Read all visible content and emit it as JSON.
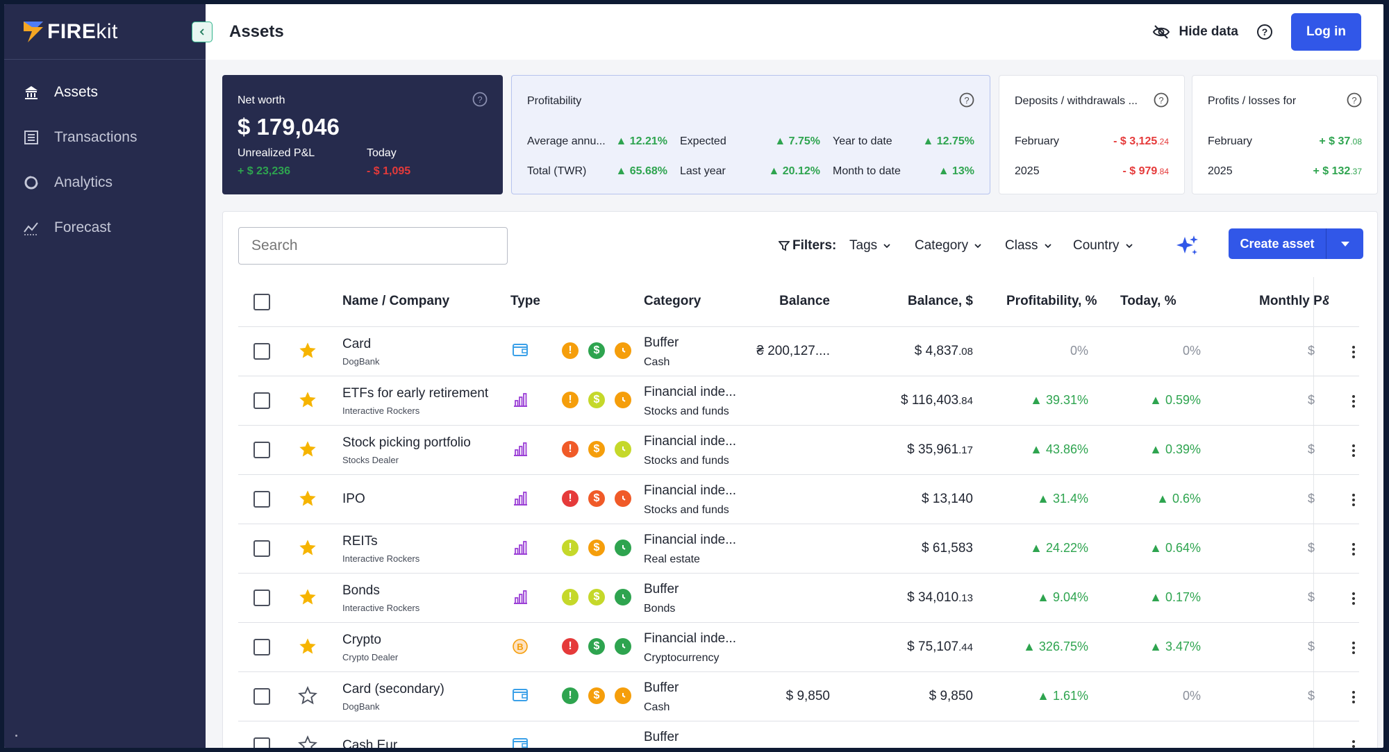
{
  "brand": {
    "name_bold": "FIRE",
    "name_light": "kit"
  },
  "sidebar": {
    "items": [
      {
        "label": "Assets",
        "icon": "bank-icon",
        "active": true
      },
      {
        "label": "Transactions",
        "icon": "list-icon",
        "active": false
      },
      {
        "label": "Analytics",
        "icon": "donut-chart-icon",
        "active": false
      },
      {
        "label": "Forecast",
        "icon": "trend-icon",
        "active": false
      }
    ]
  },
  "topbar": {
    "title": "Assets",
    "hide_data": "Hide data",
    "login": "Log in"
  },
  "networth": {
    "title": "Net worth",
    "value": "$ 179,046",
    "unrealized_label": "Unrealized P&L",
    "unrealized_value": "+ $ 23,236",
    "today_label": "Today",
    "today_value": "- $ 1,095"
  },
  "profitability": {
    "title": "Profitability",
    "avg_label": "Average annu...",
    "avg_value": "▲ 12.21%",
    "expected_label": "Expected",
    "expected_value": "▲ 7.75%",
    "ytd_label": "Year to date",
    "ytd_value": "▲ 12.75%",
    "twr_label": "Total (TWR)",
    "twr_value": "▲ 65.68%",
    "lastyear_label": "Last year",
    "lastyear_value": "▲ 20.12%",
    "mtd_label": "Month to date",
    "mtd_value": "▲ 13%"
  },
  "deposits": {
    "title": "Deposits / withdrawals ...",
    "r1_label": "February",
    "r1_main": "- $ 3,125",
    "r1_cents": ".24",
    "r2_label": "2025",
    "r2_main": "- $ 979",
    "r2_cents": ".84"
  },
  "profits": {
    "title": "Profits / losses for",
    "r1_label": "February",
    "r1_main": "+ $ 37",
    "r1_cents": ".08",
    "r2_label": "2025",
    "r2_main": "+ $ 132",
    "r2_cents": ".37"
  },
  "toolbar": {
    "search_placeholder": "Search",
    "filters_label": "Filters:",
    "filters": [
      "Tags",
      "Category",
      "Class",
      "Country"
    ],
    "create": "Create asset"
  },
  "table": {
    "headers": {
      "name": "Name / Company",
      "type": "Type",
      "category": "Category",
      "balance": "Balance",
      "balance_usd": "Balance, $",
      "profitability": "Profitability, %",
      "today": "Today, %",
      "monthly": "Monthly P&"
    },
    "rows": [
      {
        "name": "Card",
        "company": "DogBank",
        "starred": true,
        "type": "wallet-icon",
        "flags": [
          "#f59e0b",
          "#2ea44f",
          "#f59e0b"
        ],
        "flag_glyphs": [
          "!",
          "$",
          "clock"
        ],
        "category": "Buffer",
        "subcategory": "Cash",
        "balance": "₴ 200,127....",
        "balance_usd": "$ 4,837",
        "balance_usd_cents": ".08",
        "profitability": "0%",
        "today": "0%",
        "monthly": "$"
      },
      {
        "name": "ETFs for early retirement",
        "company": "Interactive Rockers",
        "starred": true,
        "type": "bar-chart-icon",
        "flags": [
          "#f59e0b",
          "#c5d82a",
          "#f59e0b"
        ],
        "flag_glyphs": [
          "!",
          "$",
          "clock"
        ],
        "category": "Financial inde...",
        "subcategory": "Stocks and funds",
        "balance": "",
        "balance_usd": "$ 116,403",
        "balance_usd_cents": ".84",
        "profitability": "▲ 39.31%",
        "today": "▲ 0.59%",
        "monthly": "$"
      },
      {
        "name": "Stock picking portfolio",
        "company": "Stocks Dealer",
        "starred": true,
        "type": "bar-chart-icon",
        "flags": [
          "#f05a28",
          "#f59e0b",
          "#c5d82a"
        ],
        "flag_glyphs": [
          "!",
          "$",
          "clock"
        ],
        "category": "Financial inde...",
        "subcategory": "Stocks and funds",
        "balance": "",
        "balance_usd": "$ 35,961",
        "balance_usd_cents": ".17",
        "profitability": "▲ 43.86%",
        "today": "▲ 0.39%",
        "monthly": "$"
      },
      {
        "name": "IPO",
        "company": "",
        "starred": true,
        "type": "bar-chart-icon",
        "flags": [
          "#e53a3a",
          "#f05a28",
          "#f05a28"
        ],
        "flag_glyphs": [
          "!",
          "$",
          "clock"
        ],
        "category": "Financial inde...",
        "subcategory": "Stocks and funds",
        "balance": "",
        "balance_usd": "$ 13,140",
        "balance_usd_cents": "",
        "profitability": "▲ 31.4%",
        "today": "▲ 0.6%",
        "monthly": "$"
      },
      {
        "name": "REITs",
        "company": "Interactive Rockers",
        "starred": true,
        "type": "bar-chart-icon",
        "flags": [
          "#c5d82a",
          "#f59e0b",
          "#2ea44f"
        ],
        "flag_glyphs": [
          "!",
          "$",
          "clock"
        ],
        "category": "Financial inde...",
        "subcategory": "Real estate",
        "balance": "",
        "balance_usd": "$ 61,583",
        "balance_usd_cents": "",
        "profitability": "▲ 24.22%",
        "today": "▲ 0.64%",
        "monthly": "$"
      },
      {
        "name": "Bonds",
        "company": "Interactive Rockers",
        "starred": true,
        "type": "bar-chart-icon",
        "flags": [
          "#c5d82a",
          "#c5d82a",
          "#2ea44f"
        ],
        "flag_glyphs": [
          "!",
          "$",
          "clock"
        ],
        "category": "Buffer",
        "subcategory": "Bonds",
        "balance": "",
        "balance_usd": "$ 34,010",
        "balance_usd_cents": ".13",
        "profitability": "▲ 9.04%",
        "today": "▲ 0.17%",
        "monthly": "$"
      },
      {
        "name": "Crypto",
        "company": "Crypto Dealer",
        "starred": true,
        "type": "bitcoin-icon",
        "flags": [
          "#e53a3a",
          "#2ea44f",
          "#2ea44f"
        ],
        "flag_glyphs": [
          "!",
          "$",
          "clock"
        ],
        "category": "Financial inde...",
        "subcategory": "Cryptocurrency",
        "balance": "",
        "balance_usd": "$ 75,107",
        "balance_usd_cents": ".44",
        "profitability": "▲ 326.75%",
        "today": "▲ 3.47%",
        "monthly": "$"
      },
      {
        "name": "Card (secondary)",
        "company": "DogBank",
        "starred": false,
        "type": "wallet-icon",
        "flags": [
          "#2ea44f",
          "#f59e0b",
          "#f59e0b"
        ],
        "flag_glyphs": [
          "!",
          "$",
          "clock"
        ],
        "category": "Buffer",
        "subcategory": "Cash",
        "balance": "$ 9,850",
        "balance_usd": "$ 9,850",
        "balance_usd_cents": "",
        "profitability": "▲ 1.61%",
        "today": "0%",
        "monthly": "$"
      },
      {
        "name": "Cash Eur",
        "company": "",
        "starred": false,
        "type": "wallet-icon",
        "flags": [],
        "flag_glyphs": [],
        "category": "Buffer",
        "subcategory": "",
        "balance": "",
        "balance_usd": "",
        "balance_usd_cents": "",
        "profitability": "",
        "today": "",
        "monthly": ""
      }
    ]
  },
  "colors": {
    "sidebar": "#262b4d",
    "accent": "#3157e8",
    "green": "#2ea44f",
    "red": "#e53a3a"
  }
}
